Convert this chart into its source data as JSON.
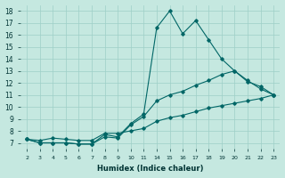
{
  "xlabel": "Humidex (Indice chaleur)",
  "bg_color": "#c5e8e0",
  "grid_color": "#9ecfc7",
  "line_color": "#006666",
  "xlim": [
    1.5,
    23.5
  ],
  "ylim": [
    6.5,
    18.5
  ],
  "yticks": [
    7,
    8,
    9,
    10,
    11,
    12,
    13,
    14,
    15,
    16,
    17,
    18
  ],
  "series": [
    {
      "x": [
        2,
        3,
        4,
        5,
        6,
        7,
        8,
        9,
        10,
        11,
        14,
        15,
        16,
        17,
        18,
        19,
        20,
        21,
        22,
        23
      ],
      "y": [
        7.3,
        7.0,
        7.0,
        7.0,
        6.9,
        6.9,
        7.7,
        7.5,
        8.6,
        9.4,
        16.6,
        18.0,
        16.1,
        17.2,
        15.6,
        14.0,
        13.0,
        12.1,
        11.7,
        11.0
      ]
    },
    {
      "x": [
        2,
        3,
        4,
        5,
        6,
        7,
        8,
        9,
        10,
        11,
        14,
        15,
        16,
        17,
        18,
        19,
        20,
        21,
        22,
        23
      ],
      "y": [
        7.3,
        7.0,
        7.0,
        7.0,
        6.9,
        6.9,
        7.5,
        7.4,
        8.5,
        9.2,
        10.5,
        11.0,
        11.3,
        11.8,
        12.2,
        12.7,
        13.0,
        12.2,
        11.5,
        11.0
      ]
    },
    {
      "x": [
        2,
        3,
        4,
        5,
        6,
        7,
        8,
        9,
        10,
        11,
        14,
        15,
        16,
        17,
        18,
        19,
        20,
        21,
        22,
        23
      ],
      "y": [
        7.3,
        7.2,
        7.4,
        7.3,
        7.2,
        7.2,
        7.8,
        7.8,
        8.0,
        8.2,
        8.8,
        9.1,
        9.3,
        9.6,
        9.9,
        10.1,
        10.3,
        10.5,
        10.7,
        11.0
      ]
    }
  ]
}
